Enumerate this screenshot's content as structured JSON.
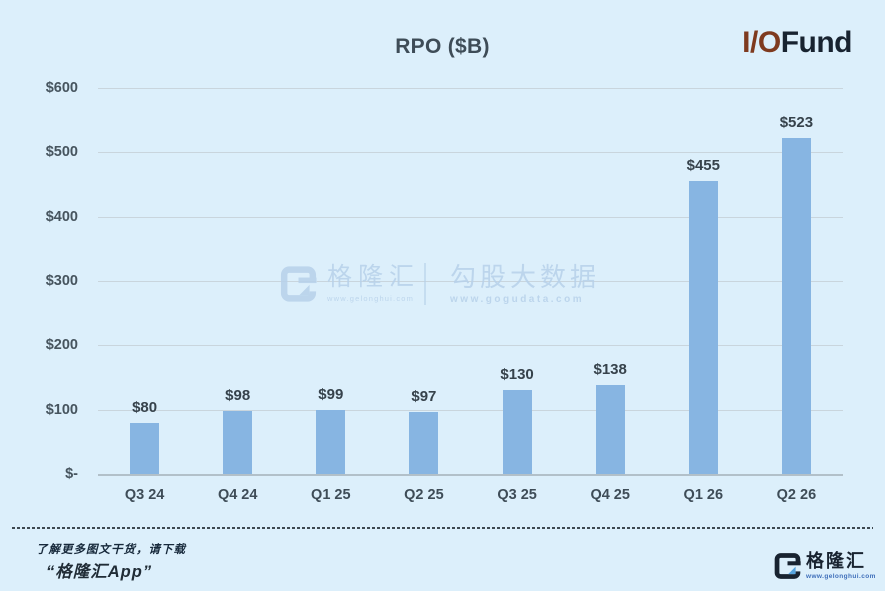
{
  "chart_data": {
    "type": "bar",
    "title": "RPO ($B)",
    "categories": [
      "Q3 24",
      "Q4 24",
      "Q1 25",
      "Q2 25",
      "Q3 25",
      "Q4 25",
      "Q1 26",
      "Q2 26"
    ],
    "values": [
      80,
      98,
      99,
      97,
      130,
      138,
      455,
      523
    ],
    "value_labels": [
      "$80",
      "$98",
      "$99",
      "$97",
      "$130",
      "$138",
      "$455",
      "$523"
    ],
    "y_ticks": [
      "$600",
      "$500",
      "$400",
      "$300",
      "$200",
      "$100",
      "$-"
    ],
    "y_tick_values": [
      600,
      500,
      400,
      300,
      200,
      100,
      0
    ],
    "ylim": [
      0,
      600
    ],
    "grid": true,
    "legend": false,
    "xlabel": "",
    "ylabel": ""
  },
  "brand": {
    "io": "I/O",
    "fund": "Fund"
  },
  "watermark": {
    "site1_name": "格隆汇",
    "site1_url": "www.gelonghui.com",
    "site2_name": "勾股大数据",
    "site2_url": "www.gogudata.com"
  },
  "footer": {
    "note_line1": "了解更多图文干货，请下载",
    "note_line2": "“格隆汇App”",
    "logo_name": "格隆汇",
    "logo_url": "www.gelonghui.com"
  },
  "colors": {
    "background": "#dceffb",
    "bar": "#87b5e2",
    "accent_brown": "#7e3a1f",
    "navy": "#182330",
    "watermark": "#b7d1ea",
    "gridline": "#c9d5dd",
    "axis_line": "#b2c0c9",
    "triangle": "#57a4de",
    "text": "#3e4c57"
  }
}
